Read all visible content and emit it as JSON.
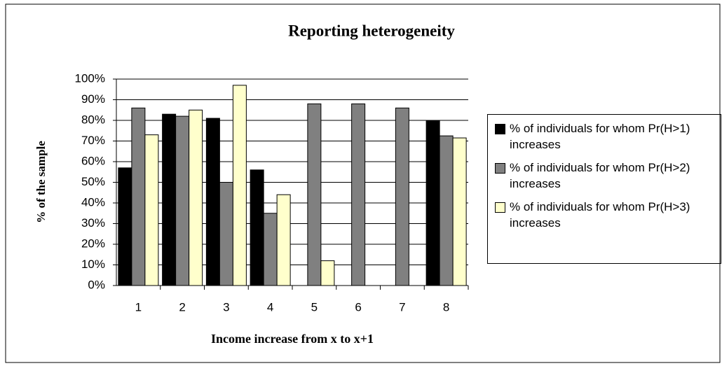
{
  "chart_data": {
    "type": "bar",
    "title": "Reporting heterogeneity",
    "x_label": "Income increase from x to x+1",
    "y_label": "% of the sample",
    "categories": [
      "1",
      "2",
      "3",
      "4",
      "5",
      "6",
      "7",
      "8"
    ],
    "series": [
      {
        "name": "% of individuals for whom Pr(H>1) increases",
        "color": "#000000",
        "values": [
          57,
          83,
          81,
          56,
          null,
          null,
          null,
          80
        ]
      },
      {
        "name": "% of individuals for whom Pr(H>2) increases",
        "color": "#808080",
        "values": [
          86,
          82,
          50,
          35,
          88,
          88,
          86,
          72.5
        ]
      },
      {
        "name": "% of individuals for whom Pr(H>3) increases",
        "color": "#ffffcc",
        "values": [
          73,
          85,
          97,
          44,
          12,
          null,
          null,
          71.5
        ]
      }
    ],
    "ylim": [
      0,
      100
    ],
    "yticks": [
      {
        "value": 0,
        "label": "0%"
      },
      {
        "value": 10,
        "label": "10%"
      },
      {
        "value": 20,
        "label": "20%"
      },
      {
        "value": 30,
        "label": "30%"
      },
      {
        "value": 40,
        "label": "40%"
      },
      {
        "value": 50,
        "label": "50%"
      },
      {
        "value": 60,
        "label": "60%"
      },
      {
        "value": 70,
        "label": "70%"
      },
      {
        "value": 80,
        "label": "80%"
      },
      {
        "value": 90,
        "label": "90%"
      },
      {
        "value": 100,
        "label": "100%"
      }
    ],
    "grid": true,
    "legend": "right"
  }
}
